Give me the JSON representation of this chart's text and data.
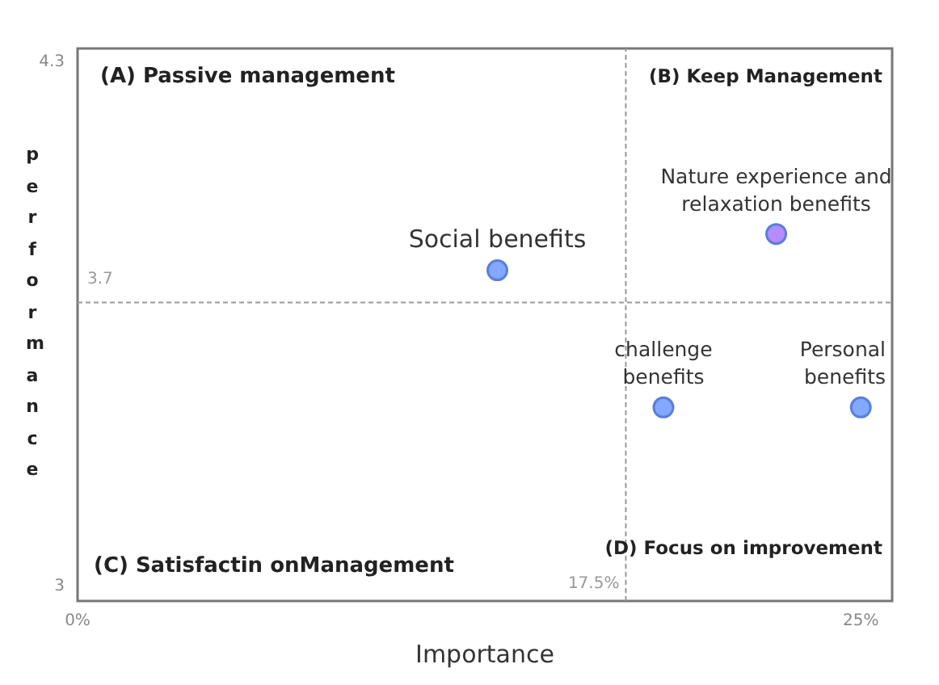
{
  "chart_data": {
    "type": "scatter",
    "xlabel": "Importance",
    "ylabel": "performance",
    "marker": "circle",
    "xlim": [
      0,
      26
    ],
    "ylim": [
      2.96,
      4.33
    ],
    "xticks": [
      {
        "value": 0,
        "label": "0%"
      },
      {
        "value": 25,
        "label": "25%"
      }
    ],
    "yticks": [
      3,
      4.3
    ],
    "ref_lines": [
      {
        "axis": "x",
        "value": 17.5,
        "label": "17.5%",
        "color": "#999999",
        "line_style": "dashed"
      },
      {
        "axis": "y",
        "value": 3.7,
        "label": "3.7",
        "color": "#999999",
        "line_style": "dashed"
      }
    ],
    "annotations": [
      "(A)  Passive management",
      "(B) Keep Management",
      "(C) Satisfactin onManagement",
      "(D) Focus on improvement"
    ],
    "series": [
      {
        "name": "Social benefits",
        "color": "#82a8ff",
        "x": [
          13.4
        ],
        "values": [
          3.78
        ]
      },
      {
        "name": "Nature experience and relaxation benefits",
        "color": "#b48cff",
        "x": [
          22.3
        ],
        "values": [
          3.87
        ]
      },
      {
        "name": "challenge benefits",
        "color": "#82a8ff",
        "x": [
          18.7
        ],
        "values": [
          3.44
        ]
      },
      {
        "name": "Personal benefits",
        "color": "#82a8ff",
        "x": [
          25
        ],
        "values": [
          3.44
        ]
      }
    ]
  }
}
